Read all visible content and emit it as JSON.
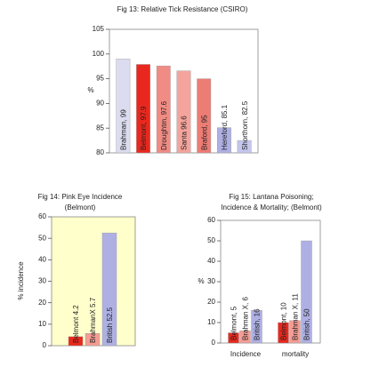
{
  "chart_data": [
    {
      "type": "bar",
      "title": "Fig 13:  Relative Tick Resistance (CSIRO)",
      "y_label": "%",
      "values": [
        99,
        97.9,
        97.6,
        96.6,
        95,
        85.1,
        82.5
      ],
      "value_labels": [
        "Brahman, 99",
        "Belmont, 97.9",
        "Droughtm, 97.6",
        "Santa 96.6",
        "Braford, 95",
        "Hereford, 85.1",
        "Shorthorn, 82.5"
      ],
      "colors": [
        "#dcdcf0",
        "#e8281e",
        "#f08c84",
        "#f4a49c",
        "#ec7c74",
        "#aeb0e4",
        "#c4c6ee"
      ],
      "ylim": [
        80,
        105
      ],
      "yticks": [
        80,
        85,
        90,
        95,
        100,
        105
      ],
      "plot_background": "#ffffff"
    },
    {
      "type": "bar",
      "title": "Fig 14: Pink Eye Incidence",
      "subtitle": "(Belmont)",
      "y_label": "% incidence",
      "values": [
        4.2,
        5.7,
        52.5
      ],
      "value_labels": [
        "Belmont 4.2",
        "BrahmanX 5.7",
        "British 52.5"
      ],
      "colors": [
        "#e8281e",
        "#f49c94",
        "#aeb0e4"
      ],
      "ylim": [
        0,
        60
      ],
      "yticks": [
        0,
        10,
        20,
        30,
        40,
        50,
        60
      ],
      "plot_background": "#ffffcc"
    },
    {
      "type": "grouped_bar",
      "title": "Fig 15:  Lantana Poisoning;",
      "subtitle": "Incidence & Mortality; (Belmont)",
      "y_label": "%",
      "categories": [
        "Incidence",
        "mortality"
      ],
      "series": [
        {
          "color": "#e8281e",
          "values": [
            5,
            10
          ],
          "value_labels": [
            "Belmont, 5",
            "Belmont, 10"
          ]
        },
        {
          "color": "#f49c94",
          "values": [
            6,
            11
          ],
          "value_labels": [
            "Brahman X, 6",
            "Brahman X, 11"
          ]
        },
        {
          "color": "#aeb0e4",
          "values": [
            16,
            50
          ],
          "value_labels": [
            "British, 16",
            "British, 50"
          ]
        }
      ],
      "ylim": [
        0,
        60
      ],
      "yticks": [
        0,
        10,
        20,
        30,
        40,
        50,
        60
      ],
      "plot_background": "#ffffff"
    }
  ]
}
